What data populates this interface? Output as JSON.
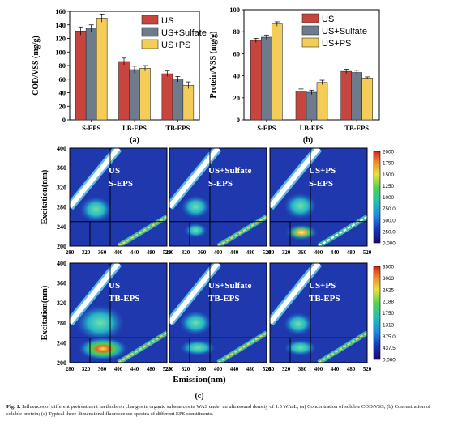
{
  "charts": [
    {
      "type": "bar",
      "panel_label": "(a)",
      "ylabel": "COD/VSS (mg/g)",
      "ylim": [
        0,
        160
      ],
      "yticks": [
        0,
        20,
        40,
        60,
        80,
        100,
        120,
        140,
        160
      ],
      "categories": [
        "S-EPS",
        "LB-EPS",
        "TB-EPS"
      ],
      "series": [
        {
          "name": "US",
          "color": "#c8453e",
          "values": [
            131,
            86,
            68
          ],
          "errors": [
            6,
            5,
            4
          ]
        },
        {
          "name": "US+Sulfate",
          "color": "#6d7b8d",
          "values": [
            135,
            74,
            60
          ],
          "errors": [
            5,
            5,
            4
          ]
        },
        {
          "name": "US+PS",
          "color": "#f4cd58",
          "values": [
            150,
            76,
            51
          ],
          "errors": [
            6,
            4,
            5
          ]
        }
      ],
      "legend_position": "top-right"
    },
    {
      "type": "bar",
      "panel_label": "(b)",
      "ylabel": "Protein/VSS (mg/g)",
      "ylim": [
        0,
        100
      ],
      "yticks": [
        0,
        20,
        40,
        60,
        80,
        100
      ],
      "categories": [
        "S-EPS",
        "LB-EPS",
        "TB-EPS"
      ],
      "series": [
        {
          "name": "US",
          "color": "#c8453e",
          "values": [
            72,
            26,
            44
          ],
          "errors": [
            2,
            2,
            2
          ]
        },
        {
          "name": "US+Sulfate",
          "color": "#6d7b8d",
          "values": [
            75,
            25,
            43
          ],
          "errors": [
            2,
            2,
            2
          ]
        },
        {
          "name": "US+PS",
          "color": "#f4cd58",
          "values": [
            87,
            34,
            38
          ],
          "errors": [
            2,
            2,
            1
          ]
        }
      ],
      "legend_position": "top-right"
    }
  ],
  "eem": {
    "panel_label": "(c)",
    "ylabel": "Excitation(nm)",
    "xlabel": "Emission(nm)",
    "yticks": [
      200,
      240,
      280,
      320,
      360,
      400
    ],
    "xticks": [
      280,
      320,
      360,
      400,
      440,
      480,
      520
    ],
    "rows": [
      {
        "colorbar_ticks": [
          "2000",
          "1750",
          "1500",
          "1250",
          "1000",
          "750.0",
          "500.0",
          "250.0",
          "0.000"
        ],
        "panels": [
          {
            "line1": "US",
            "line2": "S-EPS"
          },
          {
            "line1": "US+Sulfate",
            "line2": "S-EPS"
          },
          {
            "line1": "US+PS",
            "line2": "S-EPS"
          }
        ]
      },
      {
        "colorbar_ticks": [
          "3500",
          "3063",
          "2625",
          "2188",
          "1750",
          "1313",
          "875.0",
          "437.5",
          "0.000"
        ],
        "panels": [
          {
            "line1": "US",
            "line2": "TB-EPS"
          },
          {
            "line1": "US+Sulfate",
            "line2": "TB-EPS"
          },
          {
            "line1": "US+PS",
            "line2": "TB-EPS"
          }
        ]
      }
    ]
  },
  "caption": {
    "label": "Fig. 1.",
    "text": "Influences of different pretreatment methods on changes in organic substances in WAS under an ultrasound density of 1.5 W/mL; (a) Concentration of soluble COD/VSS; (b) Concentration of soluble protein; (c) Typical three-dimensional fluorescence spectra of different EPS constituents."
  }
}
